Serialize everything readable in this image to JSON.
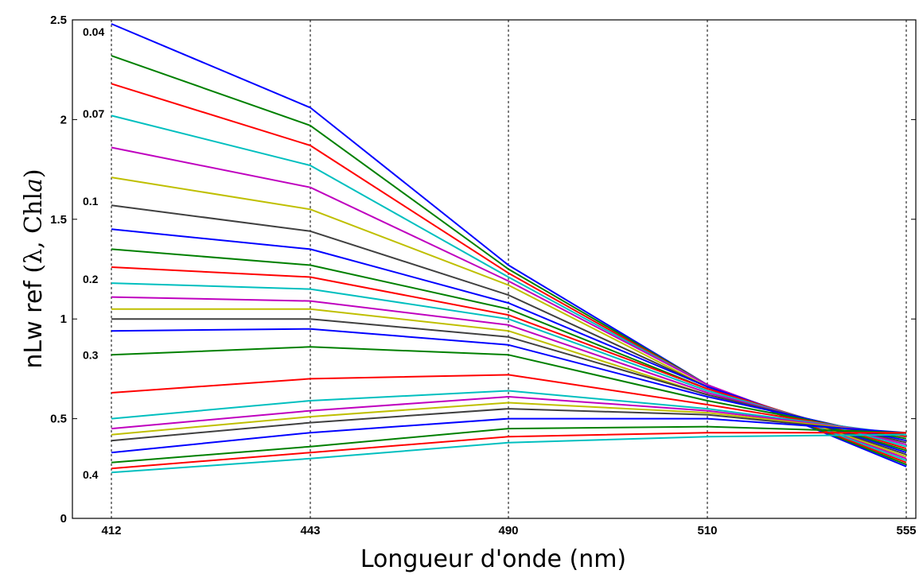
{
  "chart_data": {
    "type": "line",
    "xlabel": "Longueur d'onde (nm)",
    "ylabel_prefix": "nLw ref ",
    "ylabel_math": "(λ, Chl",
    "ylabel_italic": "a",
    "ylabel_close": ")",
    "x": [
      "412",
      "443",
      "490",
      "510",
      "555"
    ],
    "ylim": [
      0,
      2.5
    ],
    "yticks": [
      "0",
      "0.5",
      "1",
      "1.5",
      "2",
      "2.5"
    ],
    "grid": "vertical-dashed",
    "curve_labels": [
      {
        "text": "0.04",
        "y": 2.44
      },
      {
        "text": "0.07",
        "y": 2.03
      },
      {
        "text": "0.1",
        "y": 1.59
      },
      {
        "text": "0.2",
        "y": 1.2
      },
      {
        "text": "0.3",
        "y": 0.82
      },
      {
        "text": "0.4",
        "y": 0.22
      }
    ],
    "series": [
      {
        "color": "#0000ff",
        "values": [
          2.48,
          2.06,
          1.27,
          0.67,
          0.26
        ]
      },
      {
        "color": "#008000",
        "values": [
          2.32,
          1.97,
          1.25,
          0.67,
          0.27
        ]
      },
      {
        "color": "#ff0000",
        "values": [
          2.18,
          1.87,
          1.23,
          0.67,
          0.28
        ]
      },
      {
        "color": "#00bfbf",
        "values": [
          2.02,
          1.77,
          1.21,
          0.67,
          0.29
        ]
      },
      {
        "color": "#bf00bf",
        "values": [
          1.86,
          1.66,
          1.19,
          0.67,
          0.3
        ]
      },
      {
        "color": "#bfbf00",
        "values": [
          1.71,
          1.55,
          1.17,
          0.66,
          0.31
        ]
      },
      {
        "color": "#404040",
        "values": [
          1.57,
          1.44,
          1.12,
          0.66,
          0.32
        ]
      },
      {
        "color": "#0000ff",
        "values": [
          1.45,
          1.35,
          1.08,
          0.66,
          0.33
        ]
      },
      {
        "color": "#008000",
        "values": [
          1.35,
          1.27,
          1.05,
          0.65,
          0.34
        ]
      },
      {
        "color": "#ff0000",
        "values": [
          1.26,
          1.21,
          1.02,
          0.65,
          0.35
        ]
      },
      {
        "color": "#00bfbf",
        "values": [
          1.18,
          1.15,
          1.0,
          0.64,
          0.36
        ]
      },
      {
        "color": "#bf00bf",
        "values": [
          1.11,
          1.09,
          0.97,
          0.63,
          0.37
        ]
      },
      {
        "color": "#bfbf00",
        "values": [
          1.05,
          1.05,
          0.94,
          0.62,
          0.38
        ]
      },
      {
        "color": "#404040",
        "values": [
          1.0,
          1.0,
          0.91,
          0.62,
          0.38
        ]
      },
      {
        "color": "#0000ff",
        "values": [
          0.94,
          0.95,
          0.87,
          0.61,
          0.39
        ]
      },
      {
        "color": "#008000",
        "values": [
          0.82,
          0.86,
          0.82,
          0.59,
          0.4
        ]
      },
      {
        "color": "#ff0000",
        "values": [
          0.63,
          0.7,
          0.72,
          0.57,
          0.41
        ]
      },
      {
        "color": "#00bfbf",
        "values": [
          0.5,
          0.59,
          0.64,
          0.55,
          0.42
        ]
      },
      {
        "color": "#bf00bf",
        "values": [
          0.45,
          0.54,
          0.61,
          0.54,
          0.42
        ]
      },
      {
        "color": "#bfbf00",
        "values": [
          0.42,
          0.51,
          0.58,
          0.53,
          0.42
        ]
      },
      {
        "color": "#404040",
        "values": [
          0.39,
          0.48,
          0.55,
          0.52,
          0.42
        ]
      },
      {
        "color": "#0000ff",
        "values": [
          0.33,
          0.43,
          0.5,
          0.5,
          0.43
        ]
      },
      {
        "color": "#008000",
        "values": [
          0.28,
          0.36,
          0.45,
          0.46,
          0.43
        ]
      },
      {
        "color": "#ff0000",
        "values": [
          0.25,
          0.33,
          0.41,
          0.43,
          0.43
        ]
      },
      {
        "color": "#00bfbf",
        "values": [
          0.23,
          0.3,
          0.38,
          0.41,
          0.42
        ]
      }
    ]
  }
}
